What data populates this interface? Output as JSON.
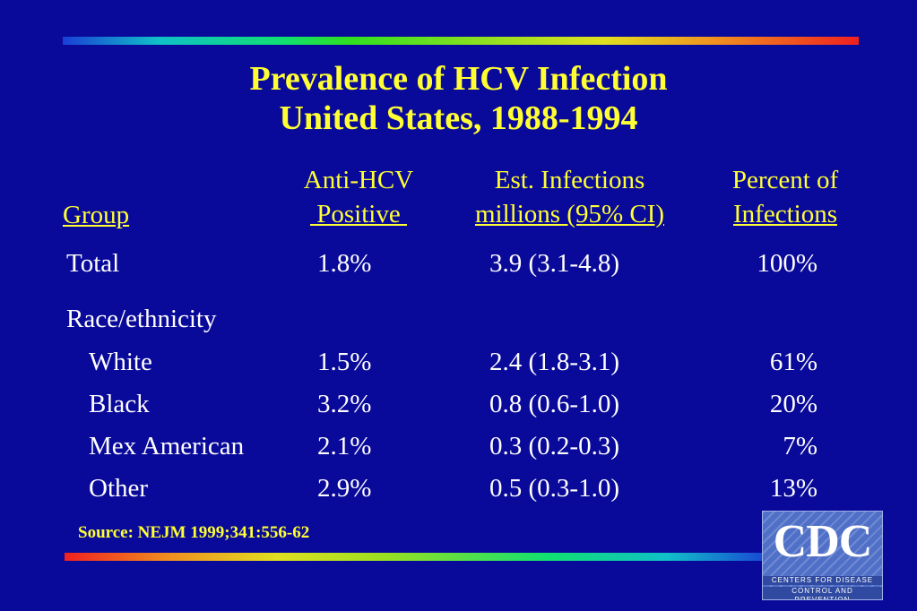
{
  "title": {
    "line1": "Prevalence of HCV Infection",
    "line2": "United States, 1988-1994"
  },
  "headers": {
    "group": "Group",
    "anti_hcv_line1": "Anti-HCV",
    "anti_hcv_line2": " Positive ",
    "est_line1": "Est. Infections",
    "est_line2": "millions (95% CI)",
    "pct_line1": "Percent of",
    "pct_line2": "Infections"
  },
  "rows": [
    {
      "group": "Total",
      "anti": "1.8%",
      "est": "3.9 (3.1-4.8)",
      "pct": "100%"
    },
    {
      "group": "Race/ethnicity",
      "anti": "",
      "est": "",
      "pct": ""
    },
    {
      "group": "White",
      "anti": "1.5%",
      "est": "2.4 (1.8-3.1)",
      "pct": "61%"
    },
    {
      "group": "Black",
      "anti": "3.2%",
      "est": "0.8 (0.6-1.0)",
      "pct": "20%"
    },
    {
      "group": "Mex American",
      "anti": "2.1%",
      "est": "0.3 (0.2-0.3)",
      "pct": "7%"
    },
    {
      "group": "Other",
      "anti": "2.9%",
      "est": "0.5 (0.3-1.0)",
      "pct": "13%"
    }
  ],
  "source": "Source: NEJM 1999;341:556-62",
  "logo": {
    "letters": "CDC",
    "line1": "CENTERS FOR DISEASE",
    "line2": "CONTROL AND PREVENTION"
  },
  "colors": {
    "background": "#0a0a9a",
    "heading": "#ffff33",
    "body_text": "#ffffff"
  }
}
